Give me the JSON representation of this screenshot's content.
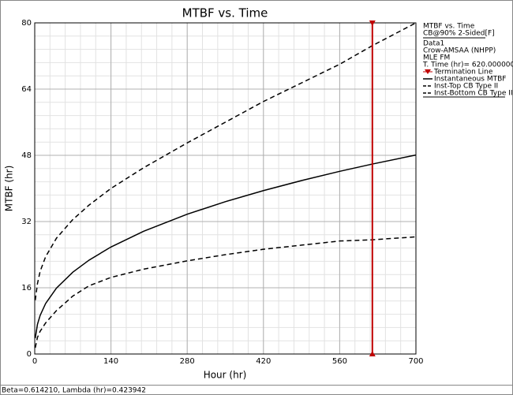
{
  "chart_data": {
    "type": "line",
    "title": "MTBF vs. Time",
    "x_label": "Hour (hr)",
    "y_label": "MTBF (hr)",
    "xlim": [
      0,
      700
    ],
    "xticks": [
      0,
      140,
      280,
      420,
      560,
      700
    ],
    "ylim": [
      0,
      80
    ],
    "yticks": [
      0,
      16,
      32,
      48,
      64,
      80
    ],
    "grid": true,
    "x": [
      1,
      5,
      10,
      20,
      40,
      70,
      100,
      140,
      200,
      280,
      350,
      420,
      490,
      560,
      620,
      700
    ],
    "series": [
      {
        "name": "Instantaneous MTBF",
        "color": "#000000",
        "dash": false,
        "values": [
          3.84,
          7.15,
          9.34,
          12.2,
          15.94,
          19.78,
          22.7,
          25.85,
          29.66,
          33.77,
          36.8,
          39.48,
          41.9,
          44.13,
          45.89,
          48.08
        ]
      },
      {
        "name": "Inst-Top CB Type II",
        "color": "#000000",
        "dash": true,
        "values": [
          13,
          17,
          20,
          23.5,
          28,
          32.5,
          36,
          40,
          45,
          51,
          56,
          61,
          65.5,
          70,
          74.5,
          80
        ]
      },
      {
        "name": "Inst-Bottom CB Type II",
        "color": "#000000",
        "dash": true,
        "values": [
          1.5,
          4,
          5.5,
          7.5,
          10.5,
          14,
          16.5,
          18.5,
          20.5,
          22.5,
          24,
          25.3,
          26.3,
          27.3,
          27.6,
          28.3
        ]
      }
    ],
    "termination_line": {
      "name": "Termination Line",
      "x": 620,
      "color": "#c00000"
    },
    "legend_header": [
      "MTBF vs. Time",
      "CB@90% 2-Sided[F]",
      "Data1",
      "Crow-AMSAA (NHPP)",
      "MLE FM",
      "T. Time (hr)= 620.000000"
    ],
    "footer": "Beta=0.614210, Lambda (hr)=0.423942"
  }
}
